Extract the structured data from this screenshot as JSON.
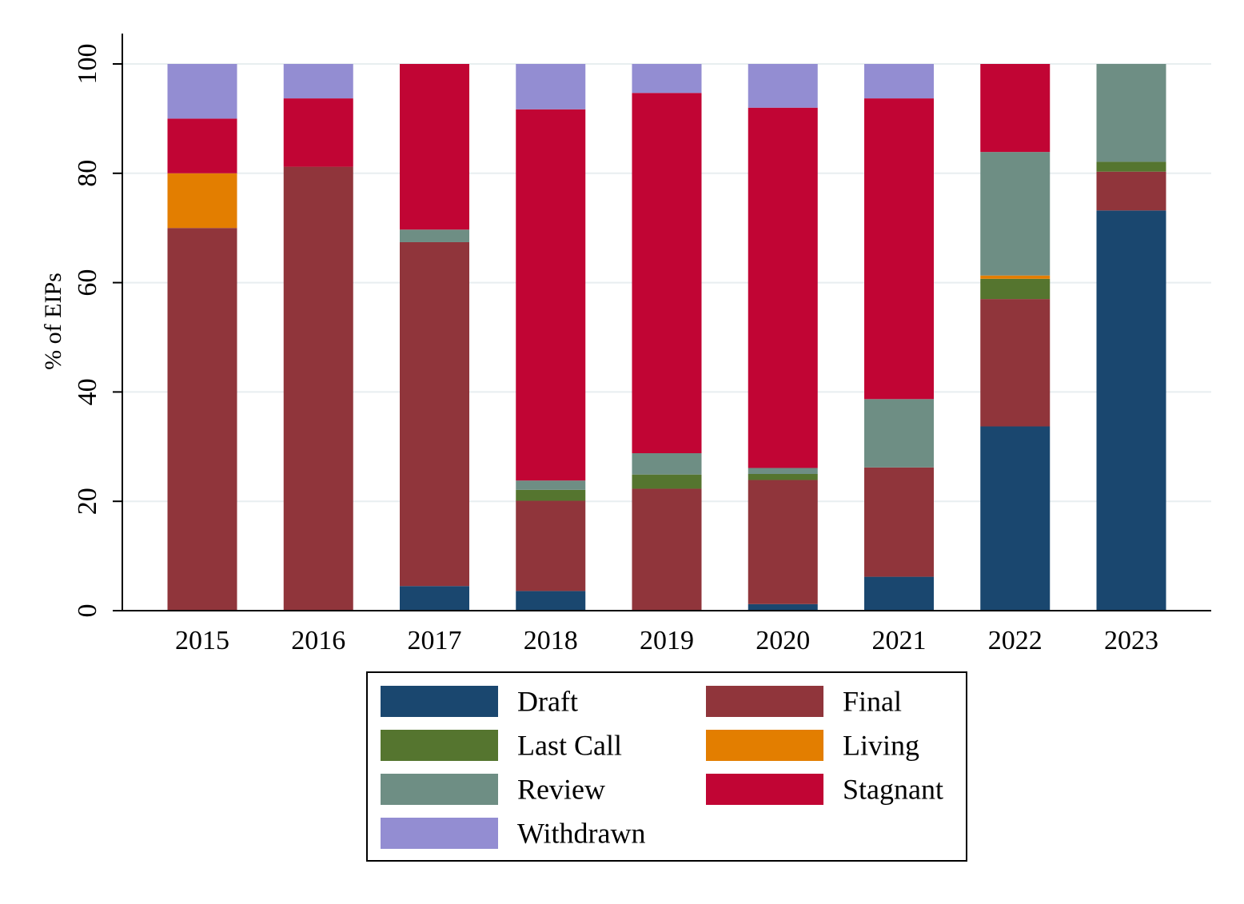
{
  "chart_data": {
    "type": "bar",
    "stacked": true,
    "categories": [
      "2015",
      "2016",
      "2017",
      "2018",
      "2019",
      "2020",
      "2021",
      "2022",
      "2023"
    ],
    "ylabel": "% of EIPs",
    "xlabel": "",
    "ylim": [
      0,
      100
    ],
    "yticks": [
      0,
      20,
      40,
      60,
      80,
      100
    ],
    "grid": true,
    "legend_position": "bottom",
    "series": [
      {
        "name": "Draft",
        "color": "#1a476f",
        "values": [
          0,
          0,
          4.5,
          3.6,
          0,
          1.2,
          6.2,
          33.7,
          73.2
        ]
      },
      {
        "name": "Final",
        "color": "#90353b",
        "values": [
          70.0,
          81.2,
          62.9,
          16.5,
          22.3,
          22.7,
          20.0,
          23.3,
          7.1
        ]
      },
      {
        "name": "Last Call",
        "color": "#55752f",
        "values": [
          0,
          0,
          0,
          2.0,
          2.6,
          1.1,
          0,
          3.7,
          1.8
        ]
      },
      {
        "name": "Living",
        "color": "#e37e00",
        "values": [
          10.0,
          0,
          0,
          0,
          0,
          0,
          0,
          0.6,
          0
        ]
      },
      {
        "name": "Review",
        "color": "#6e8e84",
        "values": [
          0,
          0,
          2.3,
          1.7,
          3.9,
          1.1,
          12.5,
          22.6,
          17.9
        ]
      },
      {
        "name": "Stagnant",
        "color": "#c10534",
        "values": [
          10.0,
          12.5,
          30.3,
          67.9,
          65.9,
          65.9,
          55.0,
          16.1,
          0
        ]
      },
      {
        "name": "Withdrawn",
        "color": "#938dd2",
        "values": [
          10.0,
          6.3,
          0,
          8.3,
          5.3,
          8.0,
          6.3,
          0,
          0
        ]
      }
    ]
  }
}
